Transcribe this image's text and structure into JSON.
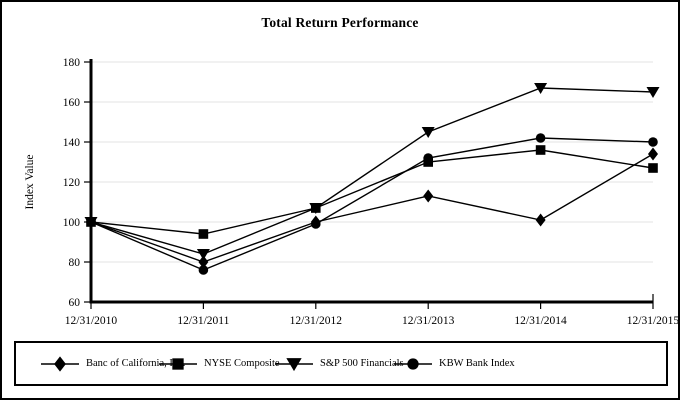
{
  "window": {
    "title": "Total Return Performance"
  },
  "chart_data": {
    "type": "line",
    "title": "Total Return Performance",
    "xlabel": "",
    "ylabel": "Index Value",
    "ylim": [
      60,
      180
    ],
    "yticks": [
      60,
      80,
      100,
      120,
      140,
      160,
      180
    ],
    "grid": true,
    "legend_position": "bottom-box",
    "categories": [
      "12/31/2010",
      "12/31/2011",
      "12/31/2012",
      "12/31/2013",
      "12/31/2014",
      "12/31/2015"
    ],
    "series": [
      {
        "name": "Banc of California, Inc.",
        "marker": "diamond",
        "values": [
          100,
          80,
          100,
          113,
          101,
          134
        ]
      },
      {
        "name": "NYSE Composite",
        "marker": "square",
        "values": [
          100,
          94,
          107,
          130,
          136,
          127
        ]
      },
      {
        "name": "S&P 500 Financials",
        "marker": "triangle-down",
        "values": [
          100,
          84,
          107,
          145,
          167,
          165
        ]
      },
      {
        "name": "KBW Bank Index",
        "marker": "circle",
        "values": [
          100,
          76,
          99,
          132,
          142,
          140
        ]
      }
    ],
    "colors": {
      "series": "#000000",
      "grid": "#e3e3e3",
      "background": "#ffffff",
      "border": "#000000"
    }
  }
}
